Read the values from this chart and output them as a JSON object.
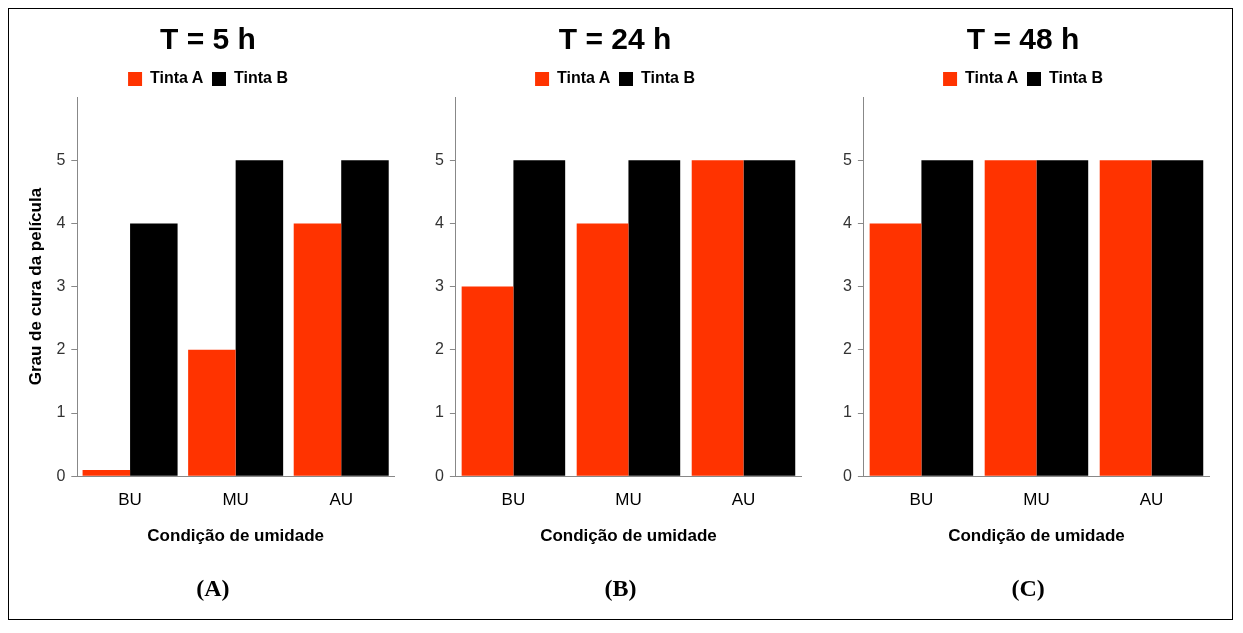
{
  "chart_data": [
    {
      "type": "bar",
      "title": "T = 5 h",
      "xlabel": "Condição de umidade",
      "ylabel": "Grau de cura da película",
      "categories": [
        "BU",
        "MU",
        "AU"
      ],
      "series": [
        {
          "name": "Tinta A",
          "color": "#ff3300",
          "values": [
            0.1,
            2,
            4
          ]
        },
        {
          "name": "Tinta B",
          "color": "#000000",
          "values": [
            4,
            5,
            5
          ]
        }
      ],
      "ylim": [
        0,
        6
      ],
      "yticks": [
        0,
        1,
        2,
        3,
        4,
        5
      ],
      "grid": false,
      "legend": "top",
      "annotations": [
        "(A)"
      ]
    },
    {
      "type": "bar",
      "title": "T = 24 h",
      "xlabel": "Condição de umidade",
      "categories": [
        "BU",
        "MU",
        "AU"
      ],
      "series": [
        {
          "name": "Tinta A",
          "color": "#ff3300",
          "values": [
            3,
            4,
            5
          ]
        },
        {
          "name": "Tinta B",
          "color": "#000000",
          "values": [
            5,
            5,
            5
          ]
        }
      ],
      "ylim": [
        0,
        6
      ],
      "yticks": [
        0,
        1,
        2,
        3,
        4,
        5
      ],
      "grid": false,
      "legend": "top",
      "annotations": [
        "(B)"
      ]
    },
    {
      "type": "bar",
      "title": "T = 48 h",
      "xlabel": "Condição de umidade",
      "categories": [
        "BU",
        "MU",
        "AU"
      ],
      "series": [
        {
          "name": "Tinta A",
          "color": "#ff3300",
          "values": [
            4,
            5,
            5
          ]
        },
        {
          "name": "Tinta B",
          "color": "#000000",
          "values": [
            5,
            5,
            5
          ]
        }
      ],
      "ylim": [
        0,
        6
      ],
      "yticks": [
        0,
        1,
        2,
        3,
        4,
        5
      ],
      "grid": false,
      "legend": "top",
      "annotations": [
        "(C)"
      ]
    }
  ]
}
